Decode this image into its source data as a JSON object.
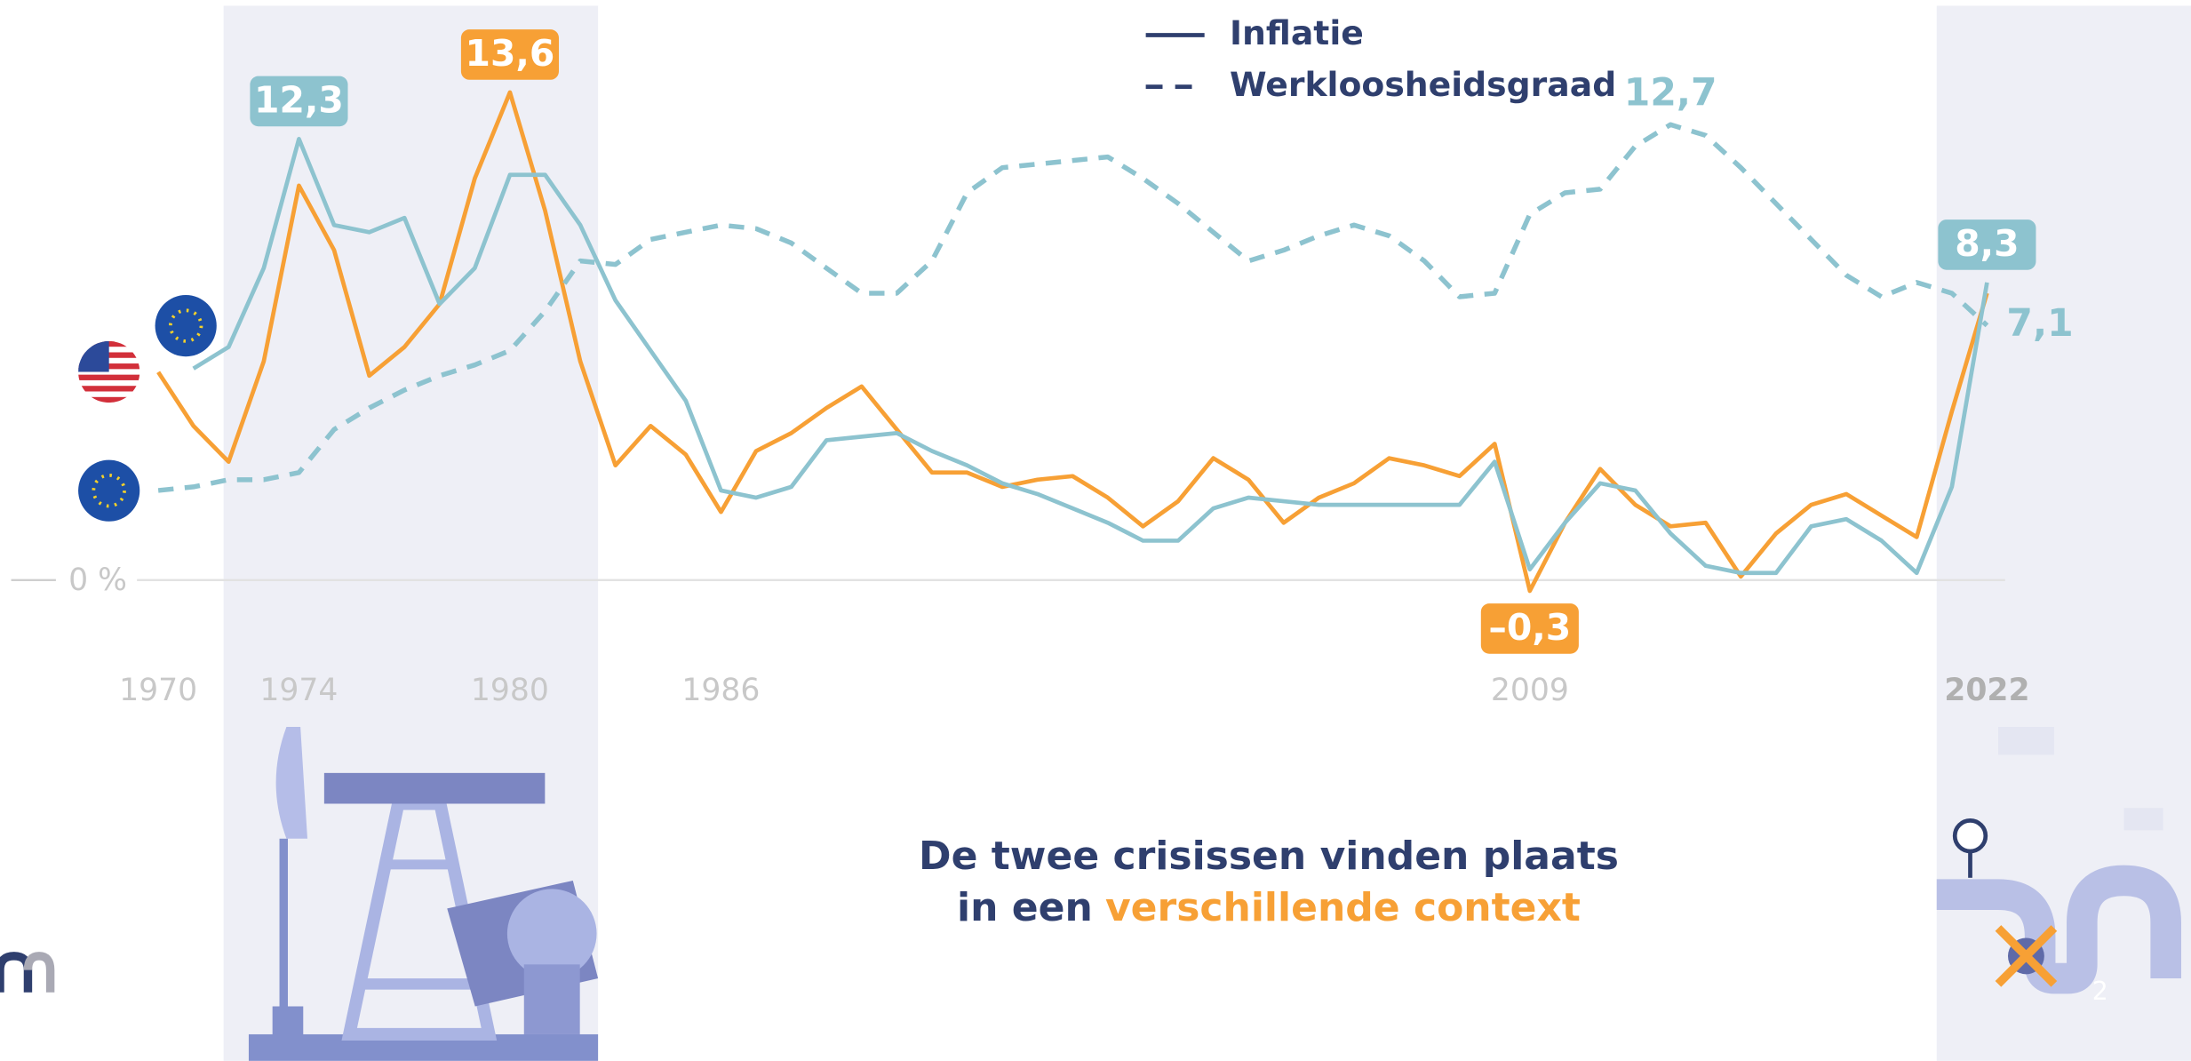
{
  "chart_data": {
    "type": "line",
    "legend": [
      {
        "label": "Inflatie",
        "style": "solid"
      },
      {
        "label": "Werkloosheidsgraad",
        "style": "dashed"
      }
    ],
    "x": [
      1970,
      1971,
      1972,
      1973,
      1974,
      1975,
      1976,
      1977,
      1978,
      1979,
      1980,
      1981,
      1982,
      1983,
      1984,
      1985,
      1986,
      1987,
      1988,
      1989,
      1990,
      1991,
      1992,
      1993,
      1994,
      1995,
      1996,
      1997,
      1998,
      1999,
      2000,
      2001,
      2002,
      2003,
      2004,
      2005,
      2006,
      2007,
      2008,
      2009,
      2010,
      2011,
      2012,
      2013,
      2014,
      2015,
      2016,
      2017,
      2018,
      2019,
      2020,
      2021,
      2022
    ],
    "xlim": [
      1965.5,
      2027.8
    ],
    "xticks": [
      1970,
      1974,
      1980,
      1986,
      2009,
      2022
    ],
    "ylim": [
      -3,
      16
    ],
    "yticks": [
      {
        "value": 0,
        "label": "0 %"
      }
    ],
    "series": [
      {
        "color": "#f7a035",
        "style": "solid",
        "values": [
          5.8,
          4.3,
          3.3,
          6.1,
          11.0,
          9.2,
          5.7,
          6.5,
          7.7,
          11.2,
          13.6,
          10.3,
          6.1,
          3.2,
          4.3,
          3.5,
          1.9,
          3.6,
          4.1,
          4.8,
          5.4,
          4.2,
          3.0,
          3.0,
          2.6,
          2.8,
          2.9,
          2.3,
          1.5,
          2.2,
          3.4,
          2.8,
          1.6,
          2.3,
          2.7,
          3.4,
          3.2,
          2.9,
          3.8,
          -0.3,
          1.6,
          3.1,
          2.1,
          1.5,
          1.6,
          0.1,
          1.3,
          2.1,
          2.4,
          1.8,
          1.2,
          4.7,
          8.0
        ],
        "value_labels": [
          null,
          null,
          null,
          null,
          null,
          null,
          null,
          null,
          null,
          null,
          "13,6",
          null,
          null,
          null,
          null,
          null,
          null,
          null,
          null,
          null,
          null,
          null,
          null,
          null,
          null,
          null,
          null,
          null,
          null,
          null,
          null,
          null,
          null,
          null,
          null,
          null,
          null,
          null,
          null,
          "–0,3",
          null,
          null,
          null,
          null,
          null,
          null,
          null,
          null,
          null,
          null,
          null,
          null,
          null
        ]
      },
      {
        "color": "#8dc3cf",
        "style": "solid",
        "values": [
          null,
          5.9,
          6.5,
          8.7,
          12.3,
          9.9,
          9.7,
          10.1,
          7.7,
          8.7,
          11.3,
          11.3,
          9.9,
          7.8,
          6.4,
          5.0,
          2.5,
          2.3,
          2.6,
          3.9,
          4.0,
          4.1,
          3.6,
          3.2,
          2.7,
          2.4,
          2.0,
          1.6,
          1.1,
          1.1,
          2.0,
          2.3,
          2.2,
          2.1,
          2.1,
          2.1,
          2.1,
          2.1,
          3.3,
          0.3,
          1.6,
          2.7,
          2.5,
          1.3,
          0.4,
          0.2,
          0.2,
          1.5,
          1.7,
          1.1,
          0.2,
          2.6,
          8.3
        ],
        "value_labels": [
          null,
          null,
          null,
          null,
          "12,3",
          null,
          null,
          null,
          null,
          null,
          null,
          null,
          null,
          null,
          null,
          null,
          null,
          null,
          null,
          null,
          null,
          null,
          null,
          null,
          null,
          null,
          null,
          null,
          null,
          null,
          null,
          null,
          null,
          null,
          null,
          null,
          null,
          null,
          null,
          null,
          null,
          null,
          null,
          null,
          null,
          null,
          null,
          null,
          null,
          null,
          null,
          null,
          "8,3"
        ]
      },
      {
        "color": "#8dc3cf",
        "style": "dashed",
        "values": [
          2.5,
          2.6,
          2.8,
          2.8,
          3.0,
          4.2,
          4.8,
          5.3,
          5.7,
          6.0,
          6.4,
          7.5,
          8.9,
          8.8,
          9.5,
          9.7,
          9.9,
          9.8,
          9.4,
          8.7,
          8.0,
          8.0,
          8.9,
          10.8,
          11.5,
          11.6,
          11.7,
          11.8,
          11.2,
          10.5,
          9.7,
          8.9,
          9.2,
          9.6,
          9.9,
          9.6,
          8.9,
          7.9,
          8.0,
          10.2,
          10.8,
          10.9,
          12.1,
          12.7,
          12.4,
          11.5,
          10.5,
          9.5,
          8.5,
          7.9,
          8.3,
          8.0,
          7.1
        ],
        "value_labels": [
          null,
          null,
          null,
          null,
          null,
          null,
          null,
          null,
          null,
          null,
          null,
          null,
          null,
          null,
          null,
          null,
          null,
          null,
          null,
          null,
          null,
          null,
          null,
          null,
          null,
          null,
          null,
          null,
          null,
          null,
          null,
          null,
          null,
          null,
          null,
          null,
          null,
          null,
          null,
          null,
          null,
          null,
          null,
          "12,7",
          null,
          null,
          null,
          null,
          null,
          null,
          null,
          null,
          "7,1"
        ]
      }
    ]
  },
  "caption": {
    "line1": "De twee crisissen vinden plaats",
    "line2_start": "in een",
    "line2_highlight": "verschillende context"
  },
  "page_number": "2"
}
